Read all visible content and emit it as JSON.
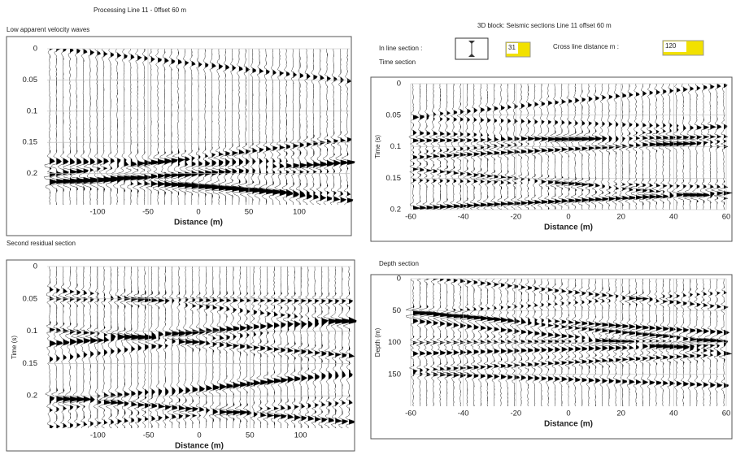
{
  "header": {
    "title": "Processing Line 11 - 0ffset 60 m",
    "right_title": "3D block: Seismic sections  Line 11 offset 60 m"
  },
  "controls": {
    "inline_label": "In line section :",
    "inline_value": "31",
    "crossline_label": "Cross line distance m :",
    "crossline_value": "120"
  },
  "plots": [
    {
      "title": "Low apparent velocity waves",
      "xlabel": "Distance (m)",
      "xlim": [
        -150,
        150
      ],
      "xticks": [
        -100,
        -50,
        0,
        50,
        100
      ],
      "ylim": [
        0,
        0.25
      ],
      "yticks": [
        0,
        0.05,
        0.1,
        0.15,
        0.2
      ]
    },
    {
      "title": "Second residual section",
      "xlabel": "Distance (m)",
      "ylabel": "Time (s)",
      "xlim": [
        -150,
        150
      ],
      "xticks": [
        -100,
        -50,
        0,
        50,
        100
      ],
      "ylim": [
        0,
        0.25
      ],
      "yticks": [
        0,
        0.05,
        0.1,
        0.15,
        0.2
      ]
    },
    {
      "title": "Time section",
      "xlabel": "Distance (m)",
      "ylabel": "Time (s)",
      "xlim": [
        -60,
        60
      ],
      "xticks": [
        -60,
        -40,
        -20,
        0,
        20,
        40,
        60
      ],
      "ylim": [
        0,
        0.2
      ],
      "yticks": [
        0,
        0.05,
        0.1,
        0.15,
        0.2
      ]
    },
    {
      "title": "Depth section",
      "xlabel": "Distance (m)",
      "ylabel": "Depth (m)",
      "xlim": [
        -60,
        60
      ],
      "xticks": [
        -60,
        -40,
        -20,
        0,
        20,
        40,
        60
      ],
      "ylim": [
        0,
        200
      ],
      "yticks": [
        0,
        50,
        100,
        150
      ]
    }
  ]
}
